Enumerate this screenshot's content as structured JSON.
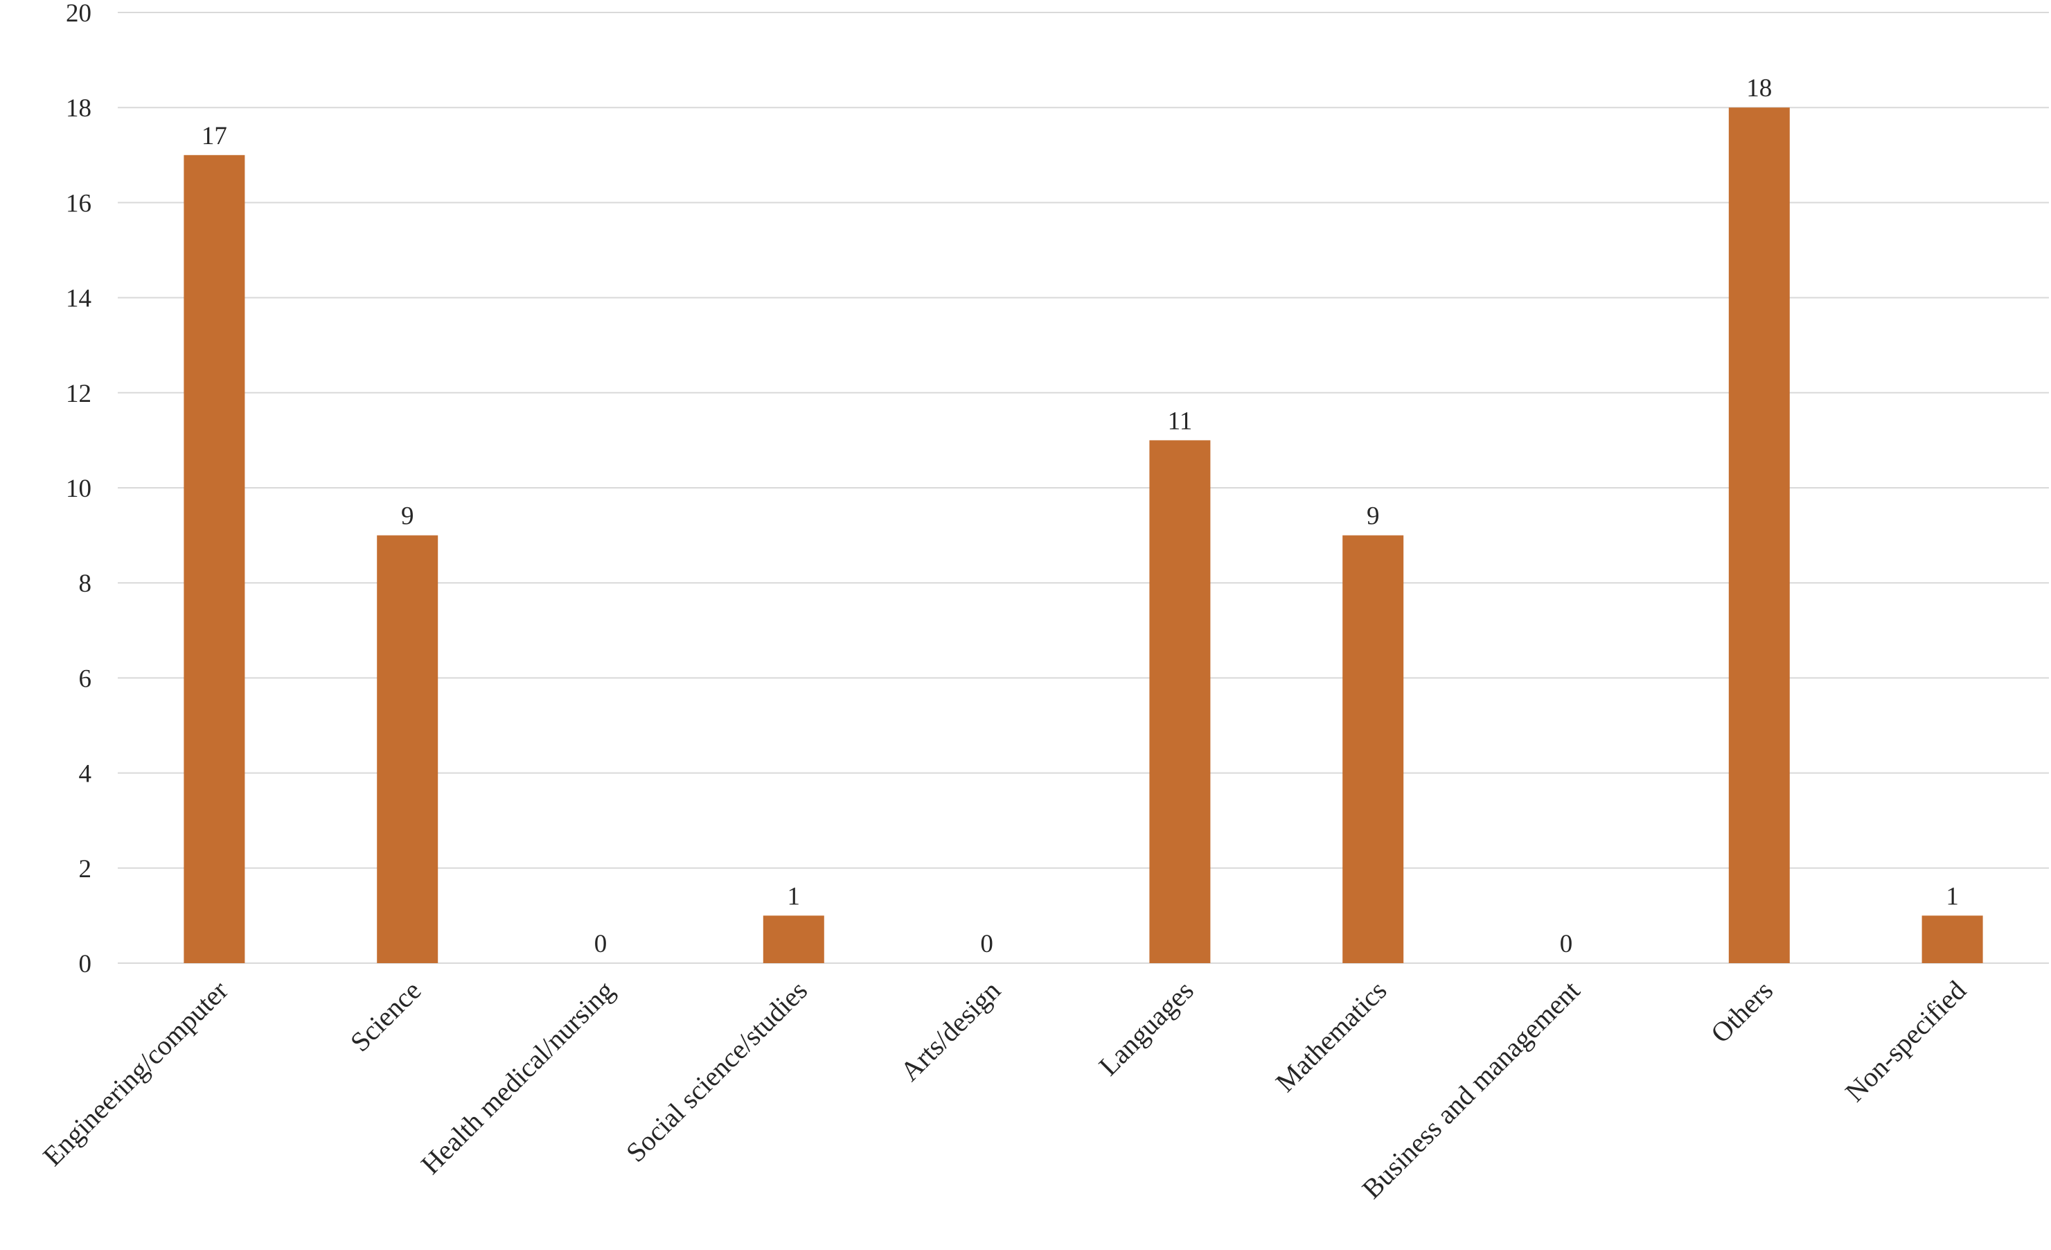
{
  "chart_data": {
    "type": "bar",
    "title": "",
    "xlabel": "",
    "ylabel": "",
    "categories": [
      "Engineering/computer",
      "Science",
      "Health medical/nursing",
      "Social science/studies",
      "Arts/design",
      "Languages",
      "Mathematics",
      "Business and management",
      "Others",
      "Non-specified"
    ],
    "values": [
      17,
      9,
      0,
      1,
      0,
      11,
      9,
      0,
      18,
      1
    ],
    "data_labels": [
      "17",
      "9",
      "0",
      "1",
      "0",
      "11",
      "9",
      "0",
      "18",
      "1"
    ],
    "ylim": [
      0,
      20
    ],
    "y_ticks": [
      0,
      2,
      4,
      6,
      8,
      10,
      12,
      14,
      16,
      18,
      20
    ],
    "y_tick_labels": [
      "0",
      "2",
      "4",
      "6",
      "8",
      "10",
      "12",
      "14",
      "16",
      "18",
      "20"
    ],
    "grid": true,
    "legend": "none",
    "colors": {
      "bar": "#C46E30",
      "grid": "#D9D9D9",
      "text": "#262626"
    }
  }
}
